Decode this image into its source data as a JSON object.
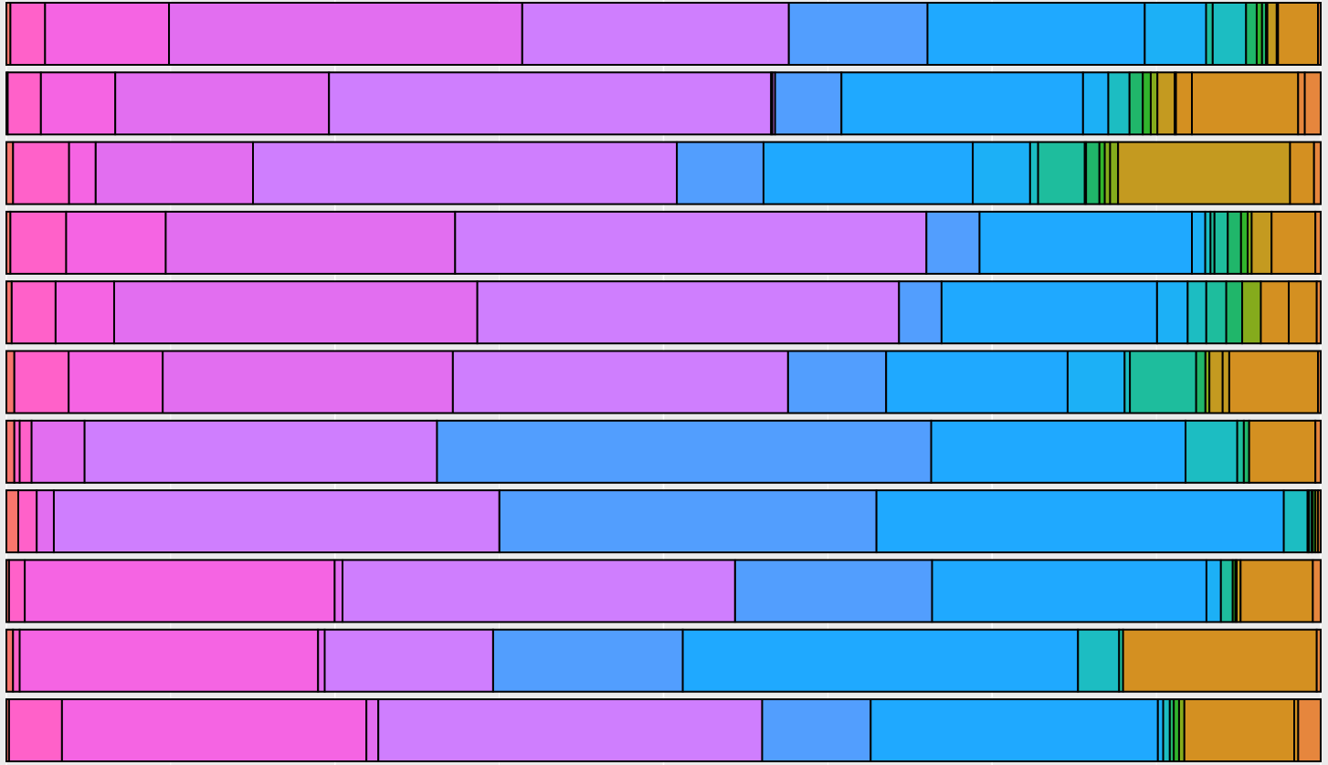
{
  "chart_data": {
    "type": "bar",
    "orientation": "horizontal",
    "stacked": true,
    "normalized": true,
    "grid": true,
    "legend": "none",
    "xlim": [
      0,
      1
    ],
    "palette": [
      "#f8766d",
      "#ff61c9",
      "#f564e3",
      "#e26ef0",
      "#cf7efe",
      "#529efe",
      "#1fa9ff",
      "#1cb0f6",
      "#1cbdc2",
      "#1ebd9d",
      "#20b66a",
      "#31b52c",
      "#85ab1c",
      "#c49a20",
      "#d49021",
      "#e6863d"
    ],
    "bars": [
      {
        "segments": [
          [
            0,
            0.003
          ],
          [
            1,
            0.026
          ],
          [
            2,
            0.093
          ],
          [
            3,
            0.265
          ],
          [
            4,
            0.2
          ],
          [
            5,
            0.104
          ],
          [
            6,
            0.163
          ],
          [
            7,
            0.046
          ],
          [
            9,
            0.005
          ],
          [
            8,
            0.025
          ],
          [
            10,
            0.008
          ],
          [
            11,
            0.004
          ],
          [
            10,
            0.003
          ],
          [
            12,
            0.001
          ],
          [
            13,
            0.007
          ],
          [
            12,
            0.001
          ],
          [
            14,
            0.03
          ],
          [
            15,
            0.002
          ]
        ]
      },
      {
        "segments": [
          [
            0,
            0.001
          ],
          [
            1,
            0.025
          ],
          [
            2,
            0.056
          ],
          [
            3,
            0.161
          ],
          [
            4,
            0.333
          ],
          [
            5,
            0.001
          ],
          [
            4,
            0.002
          ],
          [
            5,
            0.05
          ],
          [
            6,
            0.182
          ],
          [
            7,
            0.019
          ],
          [
            8,
            0.016
          ],
          [
            10,
            0.01
          ],
          [
            11,
            0.006
          ],
          [
            12,
            0.005
          ],
          [
            13,
            0.013
          ],
          [
            12,
            0.001
          ],
          [
            14,
            0.012
          ],
          [
            14,
            0.08
          ],
          [
            15,
            0.005
          ],
          [
            15,
            0.012
          ]
        ]
      },
      {
        "segments": [
          [
            0,
            0.005
          ],
          [
            1,
            0.042
          ],
          [
            2,
            0.02
          ],
          [
            3,
            0.118
          ],
          [
            4,
            0.318
          ],
          [
            5,
            0.065
          ],
          [
            6,
            0.157
          ],
          [
            7,
            0.043
          ],
          [
            8,
            0.006
          ],
          [
            9,
            0.035
          ],
          [
            9,
            0.001
          ],
          [
            10,
            0.01
          ],
          [
            11,
            0.004
          ],
          [
            12,
            0.004
          ],
          [
            12,
            0.006
          ],
          [
            13,
            0.129
          ],
          [
            14,
            0.018
          ],
          [
            15,
            0.005
          ]
        ]
      },
      {
        "segments": [
          [
            0,
            0.003
          ],
          [
            1,
            0.042
          ],
          [
            2,
            0.075
          ],
          [
            3,
            0.218
          ],
          [
            4,
            0.355
          ],
          [
            5,
            0.04
          ],
          [
            6,
            0.16
          ],
          [
            7,
            0.01
          ],
          [
            8,
            0.004
          ],
          [
            9,
            0.003
          ],
          [
            9,
            0.01
          ],
          [
            10,
            0.01
          ],
          [
            11,
            0.005
          ],
          [
            12,
            0.003
          ],
          [
            13,
            0.015
          ],
          [
            14,
            0.033
          ],
          [
            15,
            0.004
          ]
        ]
      },
      {
        "segments": [
          [
            0,
            0.004
          ],
          [
            1,
            0.033
          ],
          [
            2,
            0.044
          ],
          [
            3,
            0.273
          ],
          [
            4,
            0.317
          ],
          [
            5,
            0.032
          ],
          [
            6,
            0.162
          ],
          [
            7,
            0.023
          ],
          [
            8,
            0.014
          ],
          [
            9,
            0.015
          ],
          [
            10,
            0.012
          ],
          [
            12,
            0.014
          ],
          [
            14,
            0.021
          ],
          [
            14,
            0.021
          ],
          [
            15,
            0.003
          ]
        ]
      },
      {
        "segments": [
          [
            0,
            0.006
          ],
          [
            1,
            0.041
          ],
          [
            2,
            0.071
          ],
          [
            3,
            0.219
          ],
          [
            4,
            0.253
          ],
          [
            5,
            0.074
          ],
          [
            6,
            0.137
          ],
          [
            7,
            0.043
          ],
          [
            8,
            0.004
          ],
          [
            9,
            0.05
          ],
          [
            10,
            0.007
          ],
          [
            12,
            0.003
          ],
          [
            13,
            0.01
          ],
          [
            13,
            0.005
          ],
          [
            14,
            0.067
          ],
          [
            15,
            0.002
          ]
        ]
      },
      {
        "segments": [
          [
            0,
            0.006
          ],
          [
            1,
            0.004
          ],
          [
            1,
            0.009
          ],
          [
            3,
            0.04
          ],
          [
            4,
            0.266
          ],
          [
            5,
            0.373
          ],
          [
            6,
            0.192
          ],
          [
            8,
            0.039
          ],
          [
            9,
            0.005
          ],
          [
            10,
            0.004
          ],
          [
            14,
            0.05
          ],
          [
            15,
            0.004
          ]
        ]
      },
      {
        "segments": [
          [
            0,
            0.009
          ],
          [
            1,
            0.014
          ],
          [
            3,
            0.013
          ],
          [
            4,
            0.338
          ],
          [
            5,
            0.286
          ],
          [
            6,
            0.309
          ],
          [
            8,
            0.018
          ],
          [
            9,
            0.001
          ],
          [
            9,
            0.002
          ],
          [
            10,
            0.001
          ],
          [
            11,
            0.002
          ],
          [
            13,
            0.002
          ],
          [
            15,
            0.002
          ]
        ]
      },
      {
        "segments": [
          [
            0,
            0.002
          ],
          [
            1,
            0.012
          ],
          [
            2,
            0.236
          ],
          [
            3,
            0.006
          ],
          [
            4,
            0.299
          ],
          [
            5,
            0.15
          ],
          [
            6,
            0.209
          ],
          [
            7,
            0.011
          ],
          [
            9,
            0.009
          ],
          [
            11,
            0.002
          ],
          [
            12,
            0.001
          ],
          [
            13,
            0.003
          ],
          [
            14,
            0.055
          ],
          [
            15,
            0.006
          ]
        ]
      },
      {
        "segments": [
          [
            0,
            0.005
          ],
          [
            1,
            0.005
          ],
          [
            2,
            0.225
          ],
          [
            3,
            0.005
          ],
          [
            4,
            0.127
          ],
          [
            5,
            0.143
          ],
          [
            6,
            0.298
          ],
          [
            8,
            0.031
          ],
          [
            9,
            0.003
          ],
          [
            14,
            0.146
          ],
          [
            15,
            0.003
          ]
        ]
      },
      {
        "segments": [
          [
            0,
            0.002
          ],
          [
            1,
            0.04
          ],
          [
            2,
            0.23
          ],
          [
            3,
            0.009
          ],
          [
            4,
            0.29
          ],
          [
            5,
            0.082
          ],
          [
            6,
            0.217
          ],
          [
            7,
            0.004
          ],
          [
            8,
            0.005
          ],
          [
            10,
            0.003
          ],
          [
            11,
            0.004
          ],
          [
            12,
            0.004
          ],
          [
            14,
            0.083
          ],
          [
            14,
            0.003
          ],
          [
            15,
            0.017
          ]
        ]
      }
    ]
  }
}
